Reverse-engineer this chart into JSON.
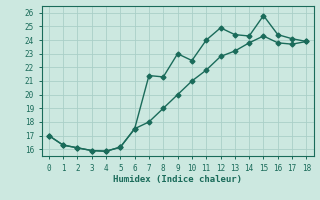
{
  "xlabel": "Humidex (Indice chaleur)",
  "xlim": [
    -0.5,
    18.5
  ],
  "ylim": [
    15.5,
    26.5
  ],
  "xticks": [
    0,
    1,
    2,
    3,
    4,
    5,
    6,
    7,
    8,
    9,
    10,
    11,
    12,
    13,
    14,
    15,
    16,
    17,
    18
  ],
  "yticks": [
    16,
    17,
    18,
    19,
    20,
    21,
    22,
    23,
    24,
    25,
    26
  ],
  "line_color": "#1a6b5a",
  "bg_color": "#cce8e0",
  "grid_color": "#aacfc8",
  "line1_x": [
    0,
    1,
    2,
    3,
    4,
    5,
    6,
    7,
    8,
    9,
    10,
    11,
    12,
    13,
    14,
    15,
    16,
    17,
    18
  ],
  "line1_y": [
    17.0,
    16.3,
    16.1,
    15.9,
    15.85,
    16.15,
    17.5,
    21.4,
    21.3,
    23.0,
    22.5,
    24.0,
    24.9,
    24.4,
    24.3,
    25.8,
    24.4,
    24.1,
    23.9
  ],
  "line2_x": [
    0,
    1,
    2,
    3,
    4,
    5,
    6,
    7,
    8,
    9,
    10,
    11,
    12,
    13,
    14,
    15,
    16,
    17,
    18
  ],
  "line2_y": [
    17.0,
    16.3,
    16.1,
    15.9,
    15.85,
    16.15,
    17.5,
    18.0,
    19.0,
    20.0,
    21.0,
    21.8,
    22.8,
    23.2,
    23.8,
    24.3,
    23.8,
    23.7,
    23.9
  ],
  "marker": "D",
  "marker_size": 2.5,
  "linewidth": 1.0
}
